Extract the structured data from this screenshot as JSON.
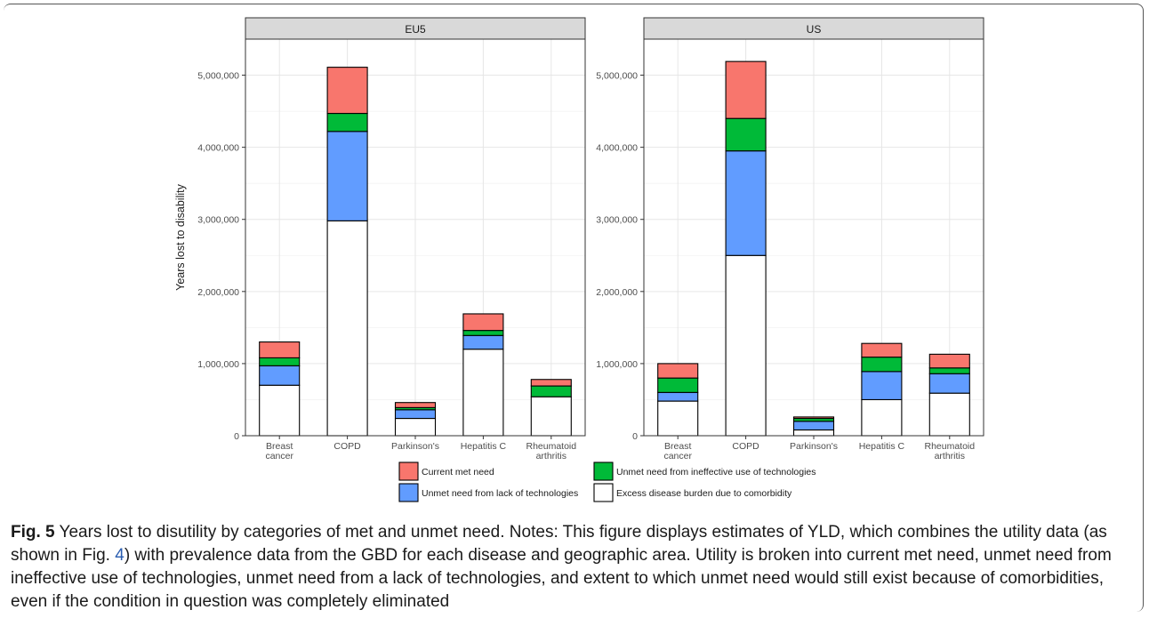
{
  "chart_data": {
    "type": "bar",
    "stacked": true,
    "ylabel": "Years lost to disability",
    "ylim": [
      0,
      5500000
    ],
    "yticks": [
      0,
      1000000,
      2000000,
      3000000,
      4000000,
      5000000
    ],
    "ytick_labels": [
      "0",
      "1,000,000",
      "2,000,000",
      "3,000,000",
      "4,000,000",
      "5,000,000"
    ],
    "categories": [
      "Breast cancer",
      "COPD",
      "Parkinson's",
      "Hepatitis C",
      "Rheumatoid arthritis"
    ],
    "category_labels": [
      [
        "Breast",
        "cancer"
      ],
      [
        "COPD"
      ],
      [
        "Parkinson's"
      ],
      [
        "Hepatitis C"
      ],
      [
        "Rheumatoid",
        "arthritis"
      ]
    ],
    "grid": true,
    "legend_position": "bottom",
    "series_meta": [
      {
        "name": "Excess disease burden due to comorbidity",
        "color": "#FFFFFF"
      },
      {
        "name": "Unmet need from lack of technologies",
        "color": "#619CFF"
      },
      {
        "name": "Unmet need from ineffective use of technologies",
        "color": "#00BA38"
      },
      {
        "name": "Current met need",
        "color": "#F8766D"
      }
    ],
    "legend_order": [
      3,
      2,
      1,
      0
    ],
    "panels": [
      {
        "title": "EU5",
        "series": [
          {
            "name": "Excess disease burden due to comorbidity",
            "values": [
              700000,
              2980000,
              240000,
              1200000,
              540000
            ]
          },
          {
            "name": "Unmet need from lack of technologies",
            "values": [
              270000,
              1240000,
              120000,
              190000,
              0
            ]
          },
          {
            "name": "Unmet need from ineffective use of technologies",
            "values": [
              110000,
              250000,
              30000,
              70000,
              150000
            ]
          },
          {
            "name": "Current met need",
            "values": [
              220000,
              640000,
              70000,
              230000,
              90000
            ]
          }
        ]
      },
      {
        "title": "US",
        "series": [
          {
            "name": "Excess disease burden due to comorbidity",
            "values": [
              480000,
              2500000,
              80000,
              500000,
              590000
            ]
          },
          {
            "name": "Unmet need from lack of technologies",
            "values": [
              120000,
              1450000,
              120000,
              390000,
              270000
            ]
          },
          {
            "name": "Unmet need from ineffective use of technologies",
            "values": [
              200000,
              450000,
              40000,
              200000,
              80000
            ]
          },
          {
            "name": "Current met need",
            "values": [
              200000,
              790000,
              20000,
              190000,
              190000
            ]
          }
        ]
      }
    ]
  },
  "caption": {
    "label": "Fig. 5",
    "text_before_link": " Years lost to disutility by categories of met and unmet need. Notes: This figure displays estimates of YLD, which combines the utility data (as shown in Fig. ",
    "link": "4",
    "text_after_link": ") with prevalence data from the GBD for each disease and geographic area. Utility is broken into current met need, unmet need from ineffective use of technologies, unmet need from a lack of technologies, and extent to which unmet need would still exist because of comorbidities, even if the condition in question was completely eliminated"
  }
}
